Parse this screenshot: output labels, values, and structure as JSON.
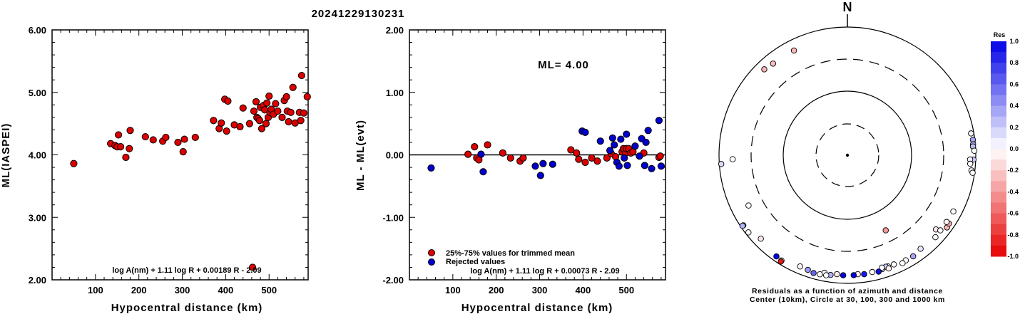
{
  "title": "20241229130231",
  "colors": {
    "accepted": "#dd0000",
    "rejected": "#0000cc",
    "zero_line": "#000000"
  },
  "chart_data": [
    {
      "type": "scatter",
      "ylabel": "ML(IASPEI)",
      "xlabel": "Hypocentral distance (km)",
      "xlim": [
        0,
        590
      ],
      "ylim": [
        2.0,
        6.0
      ],
      "xticks": [
        "100",
        "200",
        "300",
        "400",
        "500"
      ],
      "yticks": [
        "2.00",
        "3.00",
        "4.00",
        "5.00",
        "6.00"
      ],
      "annotation": "log A(nm) + 1.11 log R + 0.00189 R - 2.09",
      "series": [
        {
          "color": "#dd0000",
          "points": [
            [
              50,
              3.86
            ],
            [
              135,
              4.18
            ],
            [
              145,
              4.15
            ],
            [
              150,
              4.13
            ],
            [
              153,
              4.32
            ],
            [
              158,
              4.13
            ],
            [
              170,
              3.96
            ],
            [
              178,
              4.1
            ],
            [
              180,
              4.39
            ],
            [
              215,
              4.29
            ],
            [
              233,
              4.24
            ],
            [
              255,
              4.22
            ],
            [
              262,
              4.28
            ],
            [
              290,
              4.2
            ],
            [
              302,
              4.05
            ],
            [
              305,
              4.25
            ],
            [
              330,
              4.28
            ],
            [
              372,
              4.55
            ],
            [
              385,
              4.42
            ],
            [
              390,
              4.51
            ],
            [
              398,
              4.89
            ],
            [
              402,
              4.38
            ],
            [
              405,
              4.86
            ],
            [
              420,
              4.48
            ],
            [
              433,
              4.45
            ],
            [
              440,
              4.75
            ],
            [
              455,
              4.5
            ],
            [
              462,
              2.2
            ],
            [
              465,
              4.7
            ],
            [
              470,
              4.85
            ],
            [
              472,
              4.6
            ],
            [
              475,
              4.58
            ],
            [
              478,
              4.55
            ],
            [
              480,
              4.76
            ],
            [
              483,
              4.42
            ],
            [
              487,
              4.79
            ],
            [
              490,
              4.72
            ],
            [
              493,
              4.5
            ],
            [
              495,
              4.83
            ],
            [
              498,
              4.6
            ],
            [
              500,
              4.94
            ],
            [
              502,
              4.68
            ],
            [
              505,
              4.73
            ],
            [
              510,
              4.65
            ],
            [
              515,
              4.82
            ],
            [
              520,
              4.7
            ],
            [
              530,
              4.6
            ],
            [
              535,
              4.87
            ],
            [
              540,
              4.93
            ],
            [
              542,
              4.7
            ],
            [
              545,
              4.53
            ],
            [
              550,
              4.68
            ],
            [
              555,
              5.08
            ],
            [
              560,
              4.51
            ],
            [
              570,
              4.68
            ],
            [
              573,
              4.55
            ],
            [
              575,
              5.27
            ],
            [
              580,
              4.67
            ],
            [
              588,
              4.93
            ]
          ]
        }
      ]
    },
    {
      "type": "scatter",
      "ylabel": "ML - ML(evt)",
      "xlabel": "Hypocentral distance (km)",
      "xlim": [
        0,
        590
      ],
      "ylim": [
        -2.0,
        2.0
      ],
      "xticks": [
        "100",
        "200",
        "300",
        "400",
        "500"
      ],
      "yticks": [
        "-2.00",
        "-1.00",
        "0.00",
        "1.00",
        "2.00"
      ],
      "annotation_ml": "ML= 4.00",
      "annotation": "log A(nm) + 1.11 log R + 0.00073 R - 2.09",
      "legend": [
        "25%-75% values for trimmed mean",
        "Rejected values"
      ],
      "series": [
        {
          "name": "25%-75% values for trimmed mean",
          "color": "#dd0000",
          "points": [
            [
              135,
              0.01
            ],
            [
              150,
              0.13
            ],
            [
              155,
              -0.05
            ],
            [
              160,
              -0.08
            ],
            [
              180,
              0.16
            ],
            [
              215,
              0.03
            ],
            [
              233,
              -0.05
            ],
            [
              255,
              -0.1
            ],
            [
              262,
              -0.05
            ],
            [
              372,
              0.08
            ],
            [
              385,
              0.03
            ],
            [
              390,
              -0.07
            ],
            [
              405,
              -0.12
            ],
            [
              420,
              -0.05
            ],
            [
              433,
              -0.1
            ],
            [
              455,
              -0.05
            ],
            [
              465,
              0.02
            ],
            [
              475,
              -0.03
            ],
            [
              490,
              0.05
            ],
            [
              493,
              0.1
            ],
            [
              498,
              0.03
            ],
            [
              500,
              0.1
            ],
            [
              505,
              0.1
            ],
            [
              510,
              0.03
            ],
            [
              515,
              0.05
            ],
            [
              540,
              0.03
            ],
            [
              575,
              -0.04
            ],
            [
              578,
              -0.02
            ]
          ]
        },
        {
          "name": "Rejected values",
          "color": "#0000cc",
          "points": [
            [
              50,
              -0.21
            ],
            [
              165,
              0.01
            ],
            [
              170,
              -0.27
            ],
            [
              290,
              -0.18
            ],
            [
              302,
              -0.33
            ],
            [
              308,
              -0.14
            ],
            [
              330,
              -0.15
            ],
            [
              398,
              0.38
            ],
            [
              405,
              0.36
            ],
            [
              440,
              0.22
            ],
            [
              462,
              0.07
            ],
            [
              468,
              0.27
            ],
            [
              472,
              0.16
            ],
            [
              478,
              -0.12
            ],
            [
              483,
              -0.18
            ],
            [
              487,
              0.25
            ],
            [
              495,
              -0.05
            ],
            [
              500,
              0.33
            ],
            [
              502,
              -0.17
            ],
            [
              520,
              0.14
            ],
            [
              530,
              -0.02
            ],
            [
              535,
              0.26
            ],
            [
              542,
              -0.17
            ],
            [
              545,
              0.2
            ],
            [
              550,
              0.39
            ],
            [
              558,
              -0.22
            ],
            [
              575,
              0.55
            ],
            [
              580,
              -0.18
            ]
          ]
        }
      ]
    },
    {
      "type": "scatter",
      "north_label": "N",
      "caption_line1": "Residuals as a function of azimuth and distance",
      "caption_line2": "Center (10km), Circle at 30, 100, 300 and 1000 km",
      "colorbar": {
        "title": "Res",
        "ticks": [
          "1.0",
          "0.8",
          "0.6",
          "0.4",
          "0.2",
          "0.0",
          "-0.2",
          "-0.4",
          "-0.6",
          "-0.8",
          "-1.0"
        ]
      },
      "stations": [
        {
          "az": 316,
          "dist": 720,
          "res": -0.3
        },
        {
          "az": 321,
          "dist": 680,
          "res": -0.25
        },
        {
          "az": 333,
          "dist": 670,
          "res": -0.28
        },
        {
          "az": 80,
          "dist": 900,
          "res": 0.05
        },
        {
          "az": 83,
          "dist": 930,
          "res": 0.35
        },
        {
          "az": 85,
          "dist": 920,
          "res": 0.3
        },
        {
          "az": 86,
          "dist": 910,
          "res": 0.25
        },
        {
          "az": 88,
          "dist": 950,
          "res": 0.0
        },
        {
          "az": 92,
          "dist": 920,
          "res": 0.2
        },
        {
          "az": 97,
          "dist": 880,
          "res": -0.05
        },
        {
          "az": 98,
          "dist": 930,
          "res": 0.0
        },
        {
          "az": 92,
          "dist": 810,
          "res": 0.05
        },
        {
          "az": 94,
          "dist": 820,
          "res": 0.0
        },
        {
          "az": 268,
          "dist": 600,
          "res": 0.0
        },
        {
          "az": 266,
          "dist": 930,
          "res": 0.15
        },
        {
          "az": 243,
          "dist": 520,
          "res": 0.0
        },
        {
          "az": 236,
          "dist": 900,
          "res": 0.4
        },
        {
          "az": 236,
          "dist": 930,
          "res": 0.3
        },
        {
          "az": 232,
          "dist": 900,
          "res": 0.0
        },
        {
          "az": 226,
          "dist": 740,
          "res": -0.1
        },
        {
          "az": 215,
          "dist": 840,
          "res": 1.0
        },
        {
          "az": 212,
          "dist": 860,
          "res": 0.0
        },
        {
          "az": 212,
          "dist": 900,
          "res": -0.9
        },
        {
          "az": 153,
          "dist": 200,
          "res": -0.4
        },
        {
          "az": 126,
          "dist": 820,
          "res": -0.3
        },
        {
          "az": 124,
          "dist": 800,
          "res": -0.35
        },
        {
          "az": 130,
          "dist": 620,
          "res": -0.1
        },
        {
          "az": 118,
          "dist": 730,
          "res": 0.0
        },
        {
          "az": 124,
          "dist": 720,
          "res": -0.05
        },
        {
          "az": 129,
          "dist": 720,
          "res": 0.0
        },
        {
          "az": 133,
          "dist": 740,
          "res": 0.0
        },
        {
          "az": 142,
          "dist": 700,
          "res": 0.1
        },
        {
          "az": 147,
          "dist": 750,
          "res": 0.35
        },
        {
          "az": 151,
          "dist": 740,
          "res": 0.0
        },
        {
          "az": 153,
          "dist": 770,
          "res": 0.0
        },
        {
          "az": 157,
          "dist": 700,
          "res": 0.0
        },
        {
          "az": 160,
          "dist": 690,
          "res": 0.0
        },
        {
          "az": 161,
          "dist": 680,
          "res": 0.2
        },
        {
          "az": 163,
          "dist": 710,
          "res": 0.0
        },
        {
          "az": 163,
          "dist": 670,
          "res": 0.0
        },
        {
          "az": 160,
          "dist": 750,
          "res": -0.05
        },
        {
          "az": 165,
          "dist": 750,
          "res": 0.95
        },
        {
          "az": 168,
          "dist": 720,
          "res": 0.0
        },
        {
          "az": 172,
          "dist": 740,
          "res": 0.9
        },
        {
          "az": 175,
          "dist": 720,
          "res": -0.05
        },
        {
          "az": 177,
          "dist": 740,
          "res": 1.0
        },
        {
          "az": 182,
          "dist": 740,
          "res": 1.0
        },
        {
          "az": 185,
          "dist": 720,
          "res": -0.1
        },
        {
          "az": 188,
          "dist": 760,
          "res": 0.3
        },
        {
          "az": 191,
          "dist": 730,
          "res": 0.0
        },
        {
          "az": 190,
          "dist": 790,
          "res": 0.0
        },
        {
          "az": 193,
          "dist": 800,
          "res": 0.0
        },
        {
          "az": 196,
          "dist": 810,
          "res": 0.6
        },
        {
          "az": 199,
          "dist": 770,
          "res": 0.4
        },
        {
          "az": 203,
          "dist": 760,
          "res": -0.05
        }
      ]
    }
  ]
}
